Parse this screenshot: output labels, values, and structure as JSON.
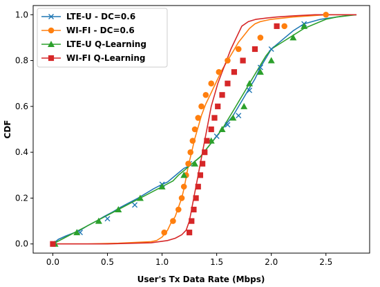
{
  "chart_data": {
    "type": "line",
    "title": "",
    "xlabel": "User's Tx Data Rate (Mbps)",
    "ylabel": "CDF",
    "xlim": [
      -0.18,
      2.9
    ],
    "ylim": [
      -0.04,
      1.04
    ],
    "xticks": [
      "0.0",
      "0.5",
      "1.0",
      "1.5",
      "2.0",
      "2.5"
    ],
    "yticks": [
      "0.0",
      "0.2",
      "0.4",
      "0.6",
      "0.8",
      "1.0"
    ],
    "grid": false,
    "legend_position": "top-left",
    "series": [
      {
        "name": "LTE-U - DC=0.6",
        "color": "#1f77b4",
        "marker": "x",
        "x": [
          0.0,
          0.05,
          0.12,
          0.2,
          0.25,
          0.32,
          0.4,
          0.47,
          0.55,
          0.62,
          0.7,
          0.78,
          0.85,
          0.92,
          1.0,
          1.05,
          1.1,
          1.15,
          1.2,
          1.25,
          1.3,
          1.35,
          1.4,
          1.45,
          1.5,
          1.55,
          1.6,
          1.65,
          1.7,
          1.75,
          1.8,
          1.85,
          1.9,
          1.95,
          2.0,
          2.05,
          2.1,
          2.2,
          2.3,
          2.45,
          2.6,
          2.75,
          2.78
        ],
        "y": [
          0.0,
          0.02,
          0.035,
          0.05,
          0.06,
          0.08,
          0.1,
          0.12,
          0.14,
          0.16,
          0.18,
          0.2,
          0.22,
          0.24,
          0.26,
          0.27,
          0.29,
          0.31,
          0.33,
          0.34,
          0.36,
          0.38,
          0.41,
          0.44,
          0.47,
          0.5,
          0.53,
          0.56,
          0.6,
          0.64,
          0.68,
          0.72,
          0.77,
          0.81,
          0.85,
          0.87,
          0.89,
          0.93,
          0.96,
          0.98,
          0.99,
          1.0,
          1.0
        ],
        "marker_x": [
          0.0,
          0.25,
          0.5,
          0.75,
          1.0,
          1.25,
          1.5,
          1.6,
          1.7,
          1.8,
          1.9,
          2.0,
          2.3
        ],
        "marker_y": [
          0.0,
          0.05,
          0.11,
          0.17,
          0.26,
          0.35,
          0.47,
          0.52,
          0.56,
          0.67,
          0.77,
          0.85,
          0.96
        ]
      },
      {
        "name": "WI-FI - DC=0.6",
        "color": "#ff7f0e",
        "marker": "o",
        "x": [
          0.0,
          0.3,
          0.6,
          0.9,
          0.95,
          1.0,
          1.05,
          1.08,
          1.12,
          1.15,
          1.18,
          1.2,
          1.22,
          1.24,
          1.26,
          1.28,
          1.3,
          1.33,
          1.36,
          1.4,
          1.45,
          1.5,
          1.55,
          1.6,
          1.65,
          1.7,
          1.75,
          1.8,
          1.85,
          1.9,
          2.0,
          2.2,
          2.5,
          2.78
        ],
        "y": [
          0.0,
          0.0,
          0.003,
          0.01,
          0.015,
          0.03,
          0.06,
          0.09,
          0.12,
          0.16,
          0.2,
          0.24,
          0.29,
          0.34,
          0.38,
          0.42,
          0.46,
          0.51,
          0.56,
          0.61,
          0.66,
          0.71,
          0.76,
          0.8,
          0.84,
          0.88,
          0.91,
          0.94,
          0.96,
          0.97,
          0.98,
          0.99,
          1.0,
          1.0
        ],
        "marker_x": [
          1.02,
          1.1,
          1.15,
          1.18,
          1.2,
          1.22,
          1.24,
          1.26,
          1.28,
          1.3,
          1.33,
          1.36,
          1.4,
          1.45,
          1.52,
          1.6,
          1.7,
          1.9,
          2.12,
          2.5
        ],
        "marker_y": [
          0.05,
          0.1,
          0.15,
          0.2,
          0.25,
          0.3,
          0.35,
          0.4,
          0.45,
          0.5,
          0.55,
          0.6,
          0.65,
          0.7,
          0.75,
          0.8,
          0.85,
          0.9,
          0.95,
          1.0
        ]
      },
      {
        "name": "LTE-U Q-Learning",
        "color": "#2ca02c",
        "marker": "^",
        "x": [
          0.0,
          0.1,
          0.2,
          0.3,
          0.4,
          0.5,
          0.6,
          0.7,
          0.8,
          0.9,
          1.0,
          1.1,
          1.15,
          1.2,
          1.25,
          1.3,
          1.35,
          1.4,
          1.45,
          1.5,
          1.55,
          1.6,
          1.65,
          1.7,
          1.75,
          1.8,
          1.85,
          1.9,
          1.95,
          2.0,
          2.1,
          2.2,
          2.3,
          2.4,
          2.5,
          2.6,
          2.78
        ],
        "y": [
          0.0,
          0.025,
          0.05,
          0.075,
          0.1,
          0.125,
          0.15,
          0.175,
          0.2,
          0.225,
          0.25,
          0.275,
          0.3,
          0.32,
          0.34,
          0.36,
          0.38,
          0.41,
          0.44,
          0.47,
          0.5,
          0.54,
          0.58,
          0.62,
          0.66,
          0.7,
          0.74,
          0.78,
          0.82,
          0.85,
          0.88,
          0.91,
          0.94,
          0.96,
          0.98,
          0.99,
          1.0
        ],
        "marker_x": [
          0.02,
          0.22,
          0.42,
          0.6,
          0.8,
          1.0,
          1.2,
          1.3,
          1.45,
          1.55,
          1.65,
          1.75,
          1.8,
          1.9,
          2.0,
          2.2,
          2.3
        ],
        "marker_y": [
          0.0,
          0.05,
          0.1,
          0.15,
          0.2,
          0.25,
          0.3,
          0.35,
          0.45,
          0.5,
          0.55,
          0.6,
          0.7,
          0.75,
          0.8,
          0.9,
          0.95
        ]
      },
      {
        "name": "WI-FI Q-Learning",
        "color": "#d62728",
        "marker": "s",
        "x": [
          0.0,
          0.5,
          0.9,
          1.05,
          1.12,
          1.18,
          1.22,
          1.25,
          1.27,
          1.29,
          1.31,
          1.33,
          1.35,
          1.37,
          1.39,
          1.41,
          1.43,
          1.45,
          1.48,
          1.51,
          1.55,
          1.59,
          1.63,
          1.68,
          1.73,
          1.79,
          1.86,
          1.95,
          2.05,
          2.2,
          2.4,
          2.6,
          2.78
        ],
        "y": [
          0.0,
          0.0,
          0.005,
          0.015,
          0.025,
          0.04,
          0.06,
          0.1,
          0.15,
          0.2,
          0.25,
          0.3,
          0.35,
          0.4,
          0.45,
          0.5,
          0.55,
          0.6,
          0.65,
          0.7,
          0.75,
          0.8,
          0.85,
          0.9,
          0.95,
          0.97,
          0.98,
          0.985,
          0.99,
          0.995,
          1.0,
          1.0,
          1.0
        ],
        "marker_x": [
          0.0,
          1.25,
          1.27,
          1.29,
          1.31,
          1.33,
          1.35,
          1.37,
          1.39,
          1.41,
          1.45,
          1.48,
          1.51,
          1.55,
          1.6,
          1.66,
          1.74,
          1.85,
          2.05
        ],
        "marker_y": [
          0.0,
          0.05,
          0.1,
          0.15,
          0.2,
          0.25,
          0.3,
          0.35,
          0.4,
          0.45,
          0.5,
          0.55,
          0.6,
          0.65,
          0.7,
          0.75,
          0.8,
          0.85,
          0.95
        ]
      }
    ]
  }
}
